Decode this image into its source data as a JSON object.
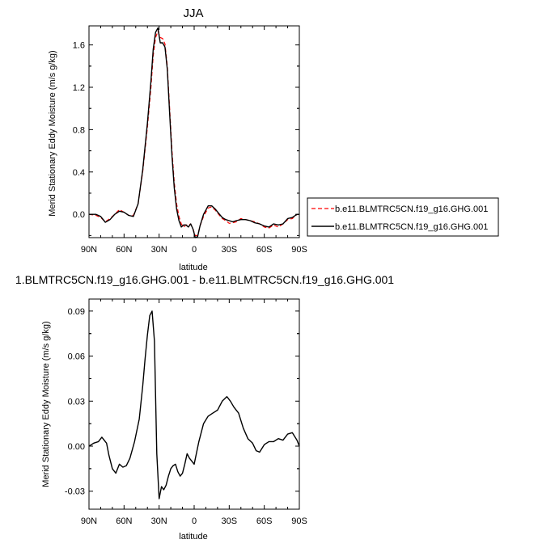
{
  "chart_data": [
    {
      "type": "line",
      "title": "JJA",
      "xlabel": "latitude",
      "ylabel": "Merid Stationary Eddy Moisture (m/s g/kg)",
      "x_ticks": [
        "90N",
        "60N",
        "30N",
        "0",
        "30S",
        "60S",
        "90S"
      ],
      "x_tick_values": [
        90,
        60,
        30,
        0,
        -30,
        -60,
        -90
      ],
      "xlim": [
        90,
        -90
      ],
      "y_ticks": [
        "0.0",
        "0.4",
        "0.8",
        "1.2",
        "1.6"
      ],
      "y_tick_values": [
        0.0,
        0.4,
        0.8,
        1.2,
        1.6
      ],
      "ylim": [
        -0.22,
        1.78
      ],
      "legend_position": "right",
      "series": [
        {
          "name": "b.e11.BLMTRC5CN.f19_g16.GHG.001",
          "color": "#ff0000",
          "dash": "dashed",
          "x": [
            90,
            84,
            80,
            76,
            72,
            68,
            64,
            60,
            56,
            52,
            48,
            44,
            40,
            37,
            35,
            33,
            31,
            29,
            27,
            25,
            23,
            21,
            19,
            17,
            15,
            13,
            11,
            9,
            7,
            5,
            3,
            1,
            -1,
            -3,
            -5,
            -8,
            -12,
            -15,
            -18,
            -21,
            -24,
            -27,
            -30,
            -33,
            -36,
            -40,
            -44,
            -48,
            -52,
            -56,
            -60,
            -64,
            -68,
            -72,
            -76,
            -80,
            -84,
            -88,
            -90
          ],
          "y": [
            0.0,
            -0.01,
            -0.03,
            -0.07,
            -0.04,
            0.0,
            0.045,
            0.02,
            -0.01,
            -0.01,
            0.1,
            0.4,
            0.82,
            1.2,
            1.5,
            1.67,
            1.73,
            1.67,
            1.66,
            1.61,
            1.4,
            1.0,
            0.6,
            0.3,
            0.1,
            -0.02,
            -0.09,
            -0.12,
            -0.1,
            -0.1,
            -0.09,
            -0.14,
            -0.2,
            -0.2,
            -0.11,
            -0.02,
            0.06,
            0.07,
            0.04,
            0.0,
            -0.04,
            -0.06,
            -0.085,
            -0.08,
            -0.07,
            -0.04,
            -0.05,
            -0.06,
            -0.07,
            -0.09,
            -0.12,
            -0.13,
            -0.1,
            -0.12,
            -0.09,
            -0.05,
            -0.04,
            0.0,
            0.0
          ]
        },
        {
          "name": "b.e11.BLMTRC5CN.f19_g16.GHG.001",
          "color": "#000000",
          "dash": "solid",
          "x": [
            90,
            84,
            80,
            76,
            72,
            68,
            64,
            60,
            56,
            52,
            48,
            44,
            40,
            37,
            35,
            33,
            31,
            29,
            27,
            25,
            23,
            21,
            19,
            17,
            15,
            13,
            11,
            9,
            7,
            5,
            3,
            1,
            -1,
            -3,
            -5,
            -8,
            -12,
            -15,
            -18,
            -21,
            -24,
            -27,
            -30,
            -33,
            -36,
            -40,
            -44,
            -48,
            -52,
            -56,
            -60,
            -64,
            -68,
            -72,
            -76,
            -80,
            -84,
            -88,
            -90
          ],
          "y": [
            0.0,
            0.0,
            -0.02,
            -0.075,
            -0.05,
            0.0,
            0.03,
            0.02,
            -0.01,
            -0.02,
            0.1,
            0.42,
            0.86,
            1.26,
            1.56,
            1.72,
            1.76,
            1.62,
            1.62,
            1.58,
            1.37,
            0.95,
            0.55,
            0.25,
            0.05,
            -0.06,
            -0.12,
            -0.1,
            -0.1,
            -0.12,
            -0.09,
            -0.14,
            -0.22,
            -0.21,
            -0.11,
            0.0,
            0.08,
            0.08,
            0.05,
            0.01,
            -0.03,
            -0.05,
            -0.06,
            -0.07,
            -0.06,
            -0.05,
            -0.05,
            -0.06,
            -0.08,
            -0.09,
            -0.11,
            -0.12,
            -0.09,
            -0.1,
            -0.09,
            -0.04,
            -0.03,
            0.0,
            0.0
          ]
        }
      ]
    },
    {
      "type": "line",
      "title": "1.BLMTRC5CN.f19_g16.GHG.001 - b.e11.BLMTRC5CN.f19_g16.GHG.001",
      "xlabel": "latitude",
      "ylabel": "Merid Stationary Eddy Moisture (m/s g/kg)",
      "x_ticks": [
        "90N",
        "60N",
        "30N",
        "0",
        "30S",
        "60S",
        "90S"
      ],
      "x_tick_values": [
        90,
        60,
        30,
        0,
        -30,
        -60,
        -90
      ],
      "xlim": [
        90,
        -90
      ],
      "y_ticks": [
        "-0.03",
        "0.00",
        "0.03",
        "0.06",
        "0.09"
      ],
      "y_tick_values": [
        -0.03,
        0.0,
        0.03,
        0.06,
        0.09
      ],
      "ylim": [
        -0.042,
        0.098
      ],
      "series": [
        {
          "color": "#000000",
          "dash": "solid",
          "x": [
            90,
            86,
            82,
            79,
            75,
            73,
            70,
            67,
            64,
            61,
            58,
            55,
            51,
            47,
            44,
            42,
            40,
            38,
            36,
            34,
            32,
            30,
            28,
            26,
            24,
            22,
            20,
            18,
            16,
            14,
            12,
            10,
            8,
            6,
            4,
            2,
            0,
            -4,
            -8,
            -12,
            -16,
            -20,
            -24,
            -28,
            -31,
            -34,
            -38,
            -42,
            -46,
            -50,
            -53,
            -56,
            -60,
            -64,
            -68,
            -72,
            -76,
            -80,
            -84,
            -88,
            -90
          ],
          "y": [
            0.0,
            0.002,
            0.003,
            0.006,
            0.002,
            -0.006,
            -0.015,
            -0.018,
            -0.012,
            -0.014,
            -0.013,
            -0.008,
            0.003,
            0.018,
            0.04,
            0.058,
            0.074,
            0.087,
            0.09,
            0.07,
            -0.005,
            -0.035,
            -0.027,
            -0.029,
            -0.026,
            -0.02,
            -0.015,
            -0.013,
            -0.012,
            -0.017,
            -0.02,
            -0.018,
            -0.012,
            -0.005,
            -0.008,
            -0.01,
            -0.012,
            0.003,
            0.015,
            0.02,
            0.022,
            0.024,
            0.03,
            0.033,
            0.03,
            0.026,
            0.022,
            0.012,
            0.005,
            0.002,
            -0.003,
            -0.004,
            0.001,
            0.003,
            0.003,
            0.005,
            0.004,
            0.008,
            0.009,
            0.004,
            0.0
          ]
        }
      ]
    }
  ]
}
